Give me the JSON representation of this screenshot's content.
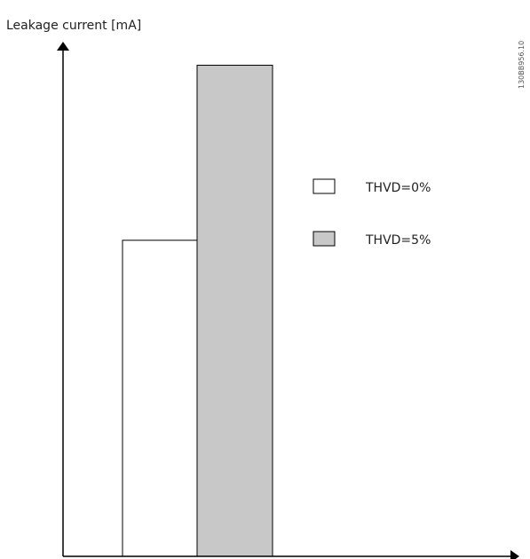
{
  "chart_data": {
    "type": "bar",
    "title": "",
    "xlabel": "",
    "ylabel": "Leakage current [mA]",
    "ylim": [
      0,
      10
    ],
    "grid": false,
    "legend_position": "right",
    "series": [
      {
        "name": "THVD=0%",
        "values": [
          6.5
        ],
        "color": "#ffffff"
      },
      {
        "name": "THVD=5%",
        "values": [
          10.1
        ],
        "color": "#c8c8c8"
      }
    ]
  },
  "side_code": "130BB956.10"
}
